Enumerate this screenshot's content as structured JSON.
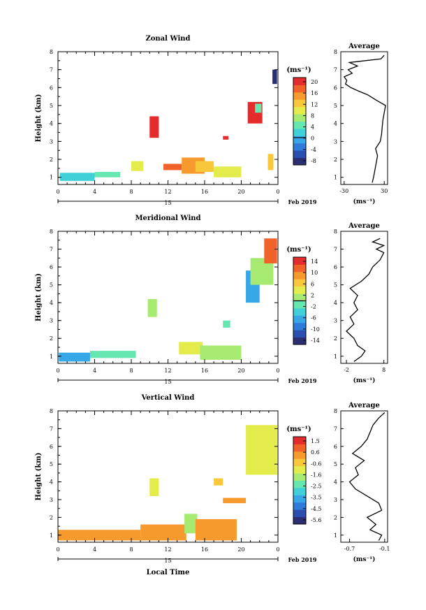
{
  "chart_data": [
    {
      "type": "heatmap",
      "title": "Zonal Wind",
      "ylabel": "Height (km)",
      "xlabel": "",
      "x_ticks": [
        "0",
        "4",
        "8",
        "12",
        "16",
        "20",
        "0"
      ],
      "y_ticks": [
        "1",
        "2",
        "3",
        "4",
        "5",
        "6",
        "7",
        "8"
      ],
      "xlim": [
        0,
        24
      ],
      "ylim": [
        0.6,
        8
      ],
      "date_day": "15",
      "date_label": "Feb 2019",
      "colorbar": {
        "unit": "(ms⁻¹)",
        "ticks": [
          "20",
          "16",
          "12",
          "8",
          "4",
          "0",
          "-4",
          "-8"
        ],
        "range": [
          -10,
          22
        ],
        "zero_line": 0
      },
      "regions": [
        {
          "x0": 0.2,
          "x1": 4.0,
          "y0": 0.8,
          "y1": 1.25,
          "value": 2
        },
        {
          "x0": 4.0,
          "x1": 6.8,
          "y0": 1.0,
          "y1": 1.3,
          "value": 5
        },
        {
          "x0": 8.0,
          "x1": 9.3,
          "y0": 1.35,
          "y1": 1.9,
          "value": 10
        },
        {
          "x0": 10.0,
          "x1": 11.0,
          "y0": 3.2,
          "y1": 4.4,
          "value": 21
        },
        {
          "x0": 11.5,
          "x1": 13.5,
          "y0": 1.4,
          "y1": 1.75,
          "value": 19
        },
        {
          "x0": 13.5,
          "x1": 16.0,
          "y0": 1.2,
          "y1": 2.1,
          "value": 15
        },
        {
          "x0": 15.0,
          "x1": 17.0,
          "y0": 1.3,
          "y1": 1.9,
          "value": 12
        },
        {
          "x0": 17.0,
          "x1": 20.0,
          "y0": 1.0,
          "y1": 1.6,
          "value": 10
        },
        {
          "x0": 18.0,
          "x1": 18.6,
          "y0": 3.1,
          "y1": 3.3,
          "value": 20
        },
        {
          "x0": 20.7,
          "x1": 22.3,
          "y0": 4.0,
          "y1": 5.2,
          "value": 21
        },
        {
          "x0": 22.9,
          "x1": 23.5,
          "y0": 1.4,
          "y1": 2.3,
          "value": 12
        },
        {
          "x0": 23.4,
          "x1": 23.9,
          "y0": 6.2,
          "y1": 7.0,
          "value": -9
        },
        {
          "x0": 21.5,
          "x1": 22.2,
          "y0": 4.6,
          "y1": 5.1,
          "value": 4
        }
      ],
      "average": {
        "title": "Average",
        "unit": "(ms⁻¹)",
        "x_ticks": [
          "-30",
          "30"
        ],
        "xlim": [
          -35,
          35
        ],
        "heights": [
          0.7,
          1.0,
          1.4,
          1.8,
          2.2,
          2.6,
          3.0,
          3.4,
          3.8,
          4.2,
          4.6,
          5.0,
          5.3,
          5.6,
          5.8,
          6.0,
          6.2,
          6.4,
          6.6,
          6.8,
          7.0,
          7.2,
          7.4,
          7.6,
          7.8
        ],
        "values": [
          12,
          14,
          16,
          18,
          20,
          17,
          24,
          26,
          27,
          28,
          30,
          32,
          18,
          5,
          -8,
          -20,
          -28,
          -26,
          -30,
          -18,
          -24,
          -10,
          -22,
          25,
          30
        ]
      }
    },
    {
      "type": "heatmap",
      "title": "Meridional Wind",
      "ylabel": "Height (km)",
      "xlabel": "",
      "x_ticks": [
        "0",
        "4",
        "8",
        "12",
        "16",
        "20",
        "0"
      ],
      "y_ticks": [
        "1",
        "2",
        "3",
        "4",
        "5",
        "6",
        "7",
        "8"
      ],
      "xlim": [
        0,
        24
      ],
      "ylim": [
        0.6,
        8
      ],
      "date_day": "15",
      "date_label": "Feb 2019",
      "colorbar": {
        "unit": "(ms⁻¹)",
        "ticks": [
          "14",
          "10",
          "6",
          "2",
          "-2",
          "-6",
          "-10",
          "-14"
        ],
        "range": [
          -16,
          16
        ],
        "zero_line": 0
      },
      "regions": [
        {
          "x0": 0.1,
          "x1": 3.5,
          "y0": 0.7,
          "y1": 1.2,
          "value": -8
        },
        {
          "x0": 3.5,
          "x1": 8.5,
          "y0": 0.9,
          "y1": 1.3,
          "value": -2
        },
        {
          "x0": 9.8,
          "x1": 10.8,
          "y0": 3.2,
          "y1": 4.2,
          "value": 0
        },
        {
          "x0": 13.2,
          "x1": 15.8,
          "y0": 1.1,
          "y1": 1.8,
          "value": 5
        },
        {
          "x0": 15.5,
          "x1": 20.0,
          "y0": 0.8,
          "y1": 1.6,
          "value": 2
        },
        {
          "x0": 18.0,
          "x1": 18.8,
          "y0": 2.6,
          "y1": 3.0,
          "value": -2
        },
        {
          "x0": 20.5,
          "x1": 22.0,
          "y0": 4.0,
          "y1": 5.8,
          "value": -6
        },
        {
          "x0": 21.0,
          "x1": 23.5,
          "y0": 5.0,
          "y1": 6.5,
          "value": 0
        },
        {
          "x0": 22.5,
          "x1": 23.9,
          "y0": 6.2,
          "y1": 7.6,
          "value": 12
        }
      ],
      "average": {
        "title": "Average",
        "unit": "(ms⁻¹)",
        "x_ticks": [
          "-2",
          "8"
        ],
        "xlim": [
          -3.5,
          9
        ],
        "heights": [
          0.7,
          1.0,
          1.3,
          1.6,
          2.0,
          2.4,
          2.8,
          3.2,
          3.6,
          4.0,
          4.4,
          4.8,
          5.2,
          5.6,
          6.0,
          6.4,
          6.8,
          7.0,
          7.2,
          7.4,
          7.6
        ],
        "values": [
          0,
          2,
          3,
          1,
          0,
          -2,
          0,
          -1,
          1,
          0,
          1,
          -1,
          2,
          4,
          5,
          7,
          8,
          6,
          8,
          5,
          7
        ]
      }
    },
    {
      "type": "heatmap",
      "title": "Vertical Wind",
      "ylabel": "Height (km)",
      "xlabel": "Local Time",
      "x_ticks": [
        "0",
        "4",
        "8",
        "12",
        "16",
        "20",
        "0"
      ],
      "y_ticks": [
        "1",
        "2",
        "3",
        "4",
        "5",
        "6",
        "7",
        "8"
      ],
      "xlim": [
        0,
        24
      ],
      "ylim": [
        0.6,
        8
      ],
      "date_day": "15",
      "date_label": "Feb 2019",
      "colorbar": {
        "unit": "(ms⁻¹)",
        "ticks": [
          "1.5",
          "0.6",
          "-0.6",
          "-1.6",
          "-2.5",
          "-3.5",
          "-4.5",
          "-5.6"
        ],
        "range": [
          -6.0,
          2.0
        ],
        "zero_line": null
      },
      "regions": [
        {
          "x0": 0.0,
          "x1": 9.0,
          "y0": 0.7,
          "y1": 1.3,
          "value": 0.5
        },
        {
          "x0": 9.0,
          "x1": 14.0,
          "y0": 0.7,
          "y1": 1.6,
          "value": 0.2
        },
        {
          "x0": 13.8,
          "x1": 15.2,
          "y0": 1.1,
          "y1": 2.2,
          "value": -1.8
        },
        {
          "x0": 15.0,
          "x1": 19.5,
          "y0": 0.7,
          "y1": 1.9,
          "value": 0.3
        },
        {
          "x0": 10.0,
          "x1": 11.0,
          "y0": 3.2,
          "y1": 4.2,
          "value": -1.2
        },
        {
          "x0": 20.5,
          "x1": 23.9,
          "y0": 4.4,
          "y1": 7.2,
          "value": -0.9
        },
        {
          "x0": 18.0,
          "x1": 20.5,
          "y0": 2.8,
          "y1": 3.1,
          "value": 0.2
        },
        {
          "x0": 17.0,
          "x1": 18.0,
          "y0": 3.8,
          "y1": 4.2,
          "value": -0.6
        }
      ],
      "average": {
        "title": "Average",
        "unit": "(ms⁻¹)",
        "x_ticks": [
          "-0.7",
          "-0.1"
        ],
        "xlim": [
          -0.85,
          -0.05
        ],
        "heights": [
          0.7,
          1.0,
          1.3,
          1.6,
          2.0,
          2.4,
          2.8,
          3.2,
          3.6,
          4.0,
          4.4,
          4.8,
          5.2,
          5.6,
          6.0,
          6.4,
          6.8,
          7.2,
          7.6,
          7.9
        ],
        "values": [
          -0.2,
          -0.15,
          -0.35,
          -0.25,
          -0.4,
          -0.15,
          -0.2,
          -0.4,
          -0.6,
          -0.7,
          -0.55,
          -0.6,
          -0.45,
          -0.65,
          -0.5,
          -0.4,
          -0.35,
          -0.3,
          -0.2,
          -0.1
        ]
      }
    }
  ]
}
